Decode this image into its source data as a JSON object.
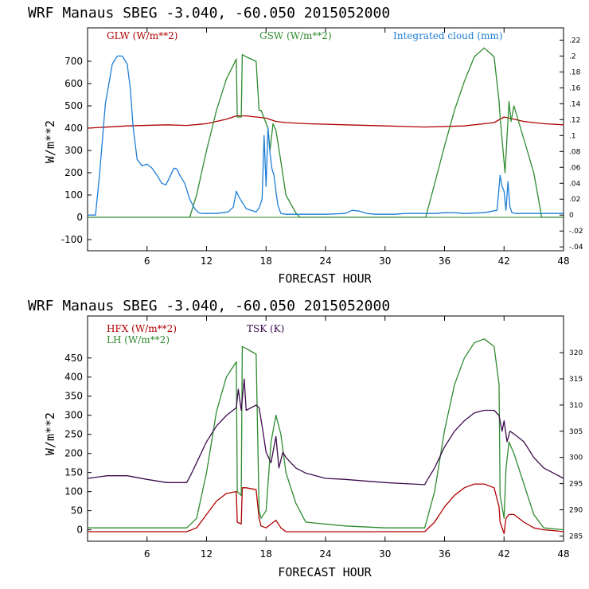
{
  "chart_data": [
    {
      "type": "line",
      "title": "WRF  Manaus SBEG   -3.040, -60.050  2015052000",
      "xlabel": "FORECAST HOUR",
      "ylabel": "W/m**2",
      "xlim": [
        0,
        48
      ],
      "xticks": [
        "6",
        "12",
        "18",
        "24",
        "30",
        "36",
        "42",
        "48"
      ],
      "ylim": [
        -150,
        850
      ],
      "yticks": [
        "-100",
        "0",
        "100",
        "200",
        "300",
        "400",
        "500",
        "600",
        "700"
      ],
      "y2_ticks": [
        ".22",
        ".2",
        ".18",
        ".16",
        ".14",
        ".12",
        ".1",
        ".08",
        ".06",
        ".04",
        ".02",
        "0",
        "-.02",
        "-.04"
      ],
      "y2lim": [
        -0.0448,
        0.2354
      ],
      "series": [
        {
          "name": "GLW (W/m**2)",
          "color": "#b00000",
          "axis": "left",
          "x": [
            0,
            4,
            8,
            10,
            12,
            14,
            15,
            16,
            17,
            18,
            19,
            20,
            22,
            26,
            30,
            34,
            38,
            41,
            42,
            43,
            44,
            46,
            48
          ],
          "y": [
            400,
            410,
            415,
            412,
            420,
            440,
            455,
            455,
            450,
            445,
            430,
            425,
            420,
            415,
            410,
            405,
            410,
            425,
            450,
            440,
            430,
            420,
            415
          ]
        },
        {
          "name": "GSW (W/m**2)",
          "color": "#2e8b2e",
          "axis": "left",
          "x": [
            0,
            10.3,
            11,
            12,
            13,
            14,
            15,
            15.1,
            15.5,
            15.6,
            16,
            17,
            17.3,
            17.5,
            18.2,
            18.4,
            18.7,
            19,
            19.5,
            20,
            21,
            21.4,
            34.1,
            35,
            36,
            37,
            38,
            39,
            40,
            41,
            41.5,
            41.6,
            41.9,
            42.1,
            42.5,
            42.7,
            43,
            44,
            45,
            45.8,
            48
          ],
          "y": [
            0,
            0,
            100,
            300,
            480,
            620,
            710,
            450,
            450,
            730,
            720,
            700,
            480,
            480,
            400,
            300,
            420,
            390,
            250,
            100,
            20,
            0,
            0,
            150,
            320,
            480,
            610,
            720,
            760,
            720,
            520,
            450,
            300,
            200,
            520,
            430,
            500,
            350,
            200,
            0,
            0
          ]
        },
        {
          "name": "Integrated cloud (mm)",
          "color": "#1e7ed6",
          "axis": "right",
          "x": [
            0,
            0.8,
            1.2,
            1.8,
            2.5,
            3,
            3.5,
            4,
            4.3,
            4.6,
            5,
            5.5,
            6,
            6.5,
            7,
            7.5,
            7.9,
            8.3,
            8.7,
            9,
            9.3,
            9.8,
            10.3,
            10.8,
            11.2,
            11.6,
            12,
            13,
            14.2,
            14.7,
            15,
            15.3,
            15.7,
            16,
            16.5,
            17,
            17.3,
            17.6,
            17.8,
            18,
            18.2,
            18.4,
            18.6,
            18.8,
            19,
            19.2,
            19.5,
            20,
            22,
            24,
            26,
            26.7,
            27.4,
            28.2,
            29,
            31,
            32,
            33,
            34,
            35,
            36,
            37,
            38,
            40,
            41.3,
            41.6,
            41.8,
            42,
            42.2,
            42.4,
            42.6,
            42.8,
            43.2,
            45,
            48
          ],
          "y": [
            0,
            0,
            0.05,
            0.14,
            0.19,
            0.2,
            0.2,
            0.19,
            0.16,
            0.11,
            0.07,
            0.062,
            0.064,
            0.059,
            0.05,
            0.04,
            0.038,
            0.048,
            0.059,
            0.058,
            0.05,
            0.04,
            0.02,
            0.008,
            0.003,
            0.002,
            0.002,
            0.002,
            0.004,
            0.01,
            0.03,
            0.022,
            0.014,
            0.008,
            0.006,
            0.004,
            0.009,
            0.02,
            0.1,
            0.036,
            0.11,
            0.078,
            0.058,
            0.05,
            0.03,
            0.012,
            0.002,
            0.001,
            0.001,
            0.001,
            0.002,
            0.006,
            0.005,
            0.002,
            0.001,
            0.001,
            0.002,
            0.002,
            0.002,
            0.002,
            0.003,
            0.003,
            0.002,
            0.003,
            0.006,
            0.05,
            0.036,
            0.03,
            0.006,
            0.042,
            0.01,
            0.003,
            0.002,
            0.002,
            0.002
          ]
        }
      ]
    },
    {
      "type": "line",
      "title": "WRF  Manaus SBEG   -3.040, -60.050  2015052000",
      "xlabel": "FORECAST HOUR",
      "ylabel": "W/m**2",
      "xlim": [
        0,
        48
      ],
      "xticks": [
        "6",
        "12",
        "18",
        "24",
        "30",
        "36",
        "42",
        "48"
      ],
      "ylim": [
        -30,
        560
      ],
      "yticks": [
        "0",
        "50",
        "100",
        "150",
        "200",
        "250",
        "300",
        "350",
        "400",
        "450"
      ],
      "y2_ticks": [
        "320",
        "315",
        "310",
        "305",
        "300",
        "295",
        "290",
        "285"
      ],
      "y2lim": [
        284,
        327
      ],
      "series": [
        {
          "name": "HFX (W/m**2)",
          "color": "#b00000",
          "axis": "left",
          "x": [
            0,
            10,
            11,
            12,
            13,
            14,
            15,
            15.1,
            15.5,
            15.6,
            16,
            17,
            17.3,
            17.5,
            18,
            18.5,
            19,
            19.5,
            20,
            22,
            26,
            30,
            34,
            35,
            36,
            37,
            38,
            39,
            40,
            41,
            41.5,
            41.6,
            42,
            42.2,
            42.5,
            43,
            44,
            45,
            46,
            47,
            48
          ],
          "y": [
            -5,
            -5,
            5,
            40,
            75,
            95,
            100,
            20,
            15,
            110,
            110,
            105,
            30,
            10,
            5,
            15,
            25,
            5,
            -5,
            -5,
            -5,
            -5,
            -5,
            20,
            60,
            90,
            110,
            120,
            120,
            110,
            60,
            20,
            -10,
            30,
            40,
            40,
            20,
            5,
            0,
            -2,
            -5
          ]
        },
        {
          "name": "LH (W/m**2)",
          "color": "#2e8b2e",
          "axis": "left",
          "x": [
            0,
            10,
            11,
            12,
            13,
            14,
            15,
            15.1,
            15.5,
            15.6,
            16,
            17,
            17.3,
            17.5,
            18,
            18.5,
            19,
            19.5,
            20,
            21,
            22,
            26,
            30,
            34,
            35,
            36,
            37,
            38,
            39,
            40,
            41,
            41.5,
            41.6,
            42,
            42.2,
            42.5,
            43,
            44,
            45,
            46,
            48
          ],
          "y": [
            5,
            5,
            30,
            150,
            310,
            400,
            440,
            100,
            90,
            480,
            475,
            460,
            50,
            30,
            50,
            230,
            300,
            250,
            150,
            70,
            20,
            10,
            5,
            5,
            100,
            260,
            380,
            450,
            490,
            500,
            480,
            380,
            90,
            30,
            160,
            230,
            200,
            120,
            40,
            5,
            0
          ]
        },
        {
          "name": "TSK (K)",
          "color": "#3d0b4d",
          "axis": "right",
          "x": [
            0,
            2,
            4,
            6,
            8,
            10,
            10.5,
            11,
            12,
            13,
            14,
            15,
            15.2,
            15.5,
            15.8,
            16,
            17,
            17.3,
            17.6,
            18,
            18.5,
            19,
            19.3,
            19.7,
            20,
            20.5,
            21,
            22,
            24,
            26,
            28,
            30,
            32,
            34,
            34.2,
            35,
            36,
            37,
            38,
            39,
            40,
            41,
            41.5,
            41.8,
            42,
            42.3,
            42.6,
            43,
            44,
            45,
            46,
            47,
            48
          ],
          "y": [
            296,
            296.5,
            296.5,
            295.8,
            295.2,
            295.2,
            297,
            299,
            303,
            306,
            308,
            309.5,
            313,
            309,
            315,
            309,
            310,
            309.5,
            306,
            301,
            299,
            304,
            298,
            301,
            300,
            299,
            298,
            297,
            296,
            295.8,
            295.5,
            295.2,
            295,
            294.8,
            295.5,
            298,
            302,
            305,
            307,
            308.5,
            309,
            309,
            308,
            305,
            307,
            303,
            305,
            304.5,
            303,
            300,
            298,
            297,
            296
          ]
        }
      ]
    }
  ]
}
